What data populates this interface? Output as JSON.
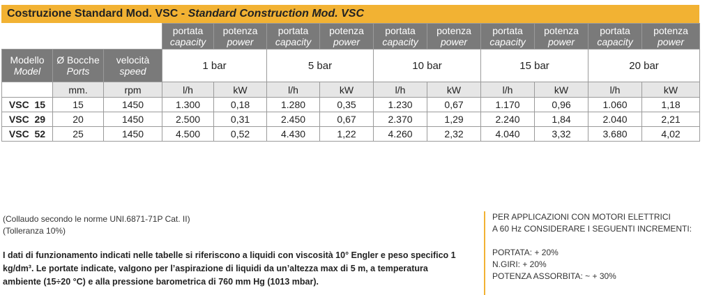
{
  "title": {
    "it": "Costruzione Standard Mod. VSC - ",
    "en": "Standard Construction Mod. VSC"
  },
  "header": {
    "model": {
      "it": "Modello",
      "en": "Model"
    },
    "ports": {
      "it": "Ø Bocche",
      "en": "Ports"
    },
    "speed": {
      "it": "velocità",
      "en": "speed"
    },
    "capacity": {
      "it": "portata",
      "en": "capacity"
    },
    "power": {
      "it": "potenza",
      "en": "power"
    },
    "pressures": [
      "1 bar",
      "5 bar",
      "10 bar",
      "15 bar",
      "20 bar"
    ],
    "units": {
      "ports": "mm.",
      "speed": "rpm",
      "capacity": "l/h",
      "power": "kW"
    }
  },
  "rows": [
    {
      "model": "VSC  15",
      "ports": "15",
      "speed": "1450",
      "values": [
        "1.300",
        "0,18",
        "1.280",
        "0,35",
        "1.230",
        "0,67",
        "1.170",
        "0,96",
        "1.060",
        "1,18"
      ]
    },
    {
      "model": "VSC  29",
      "ports": "20",
      "speed": "1450",
      "values": [
        "2.500",
        "0,31",
        "2.450",
        "0,67",
        "2.370",
        "1,29",
        "2.240",
        "1,84",
        "2.040",
        "2,21"
      ]
    },
    {
      "model": "VSC  52",
      "ports": "25",
      "speed": "1450",
      "values": [
        "4.500",
        "0,52",
        "4.430",
        "1,22",
        "4.260",
        "2,32",
        "4.040",
        "3,32",
        "3.680",
        "4,02"
      ]
    }
  ],
  "notes": {
    "test": "(Collaudo secondo le norme UNI.6871-71P Cat. II)",
    "tolerance": "(Tolleranza 10%)",
    "paragraph": "I dati di funzionamento indicati nelle tabelle si riferiscono a liquidi con viscosità 10° Engler e peso specifico 1 kg/dm³. Le portate indicate, valgono per l’aspirazione di liquidi da un’altezza max di 5 m, a temperatura ambiente (15÷20 °C) e alla pressione barometrica di 760 mm Hg (1013 mbar).",
    "right": {
      "line1": "PER APPLICAZIONI CON MOTORI ELETTRICI",
      "line2": "A 60 Hz CONSIDERARE I SEGUENTI INCREMENTI:",
      "line3": "PORTATA: + 20%",
      "line4": "N.GIRI: + 20%",
      "line5": "POTENZA ASSORBITA: ~ + 30%"
    }
  },
  "colors": {
    "accent": "#f2b233",
    "header_gray": "#7a7a7a",
    "unit_gray": "#e6e6e6"
  }
}
